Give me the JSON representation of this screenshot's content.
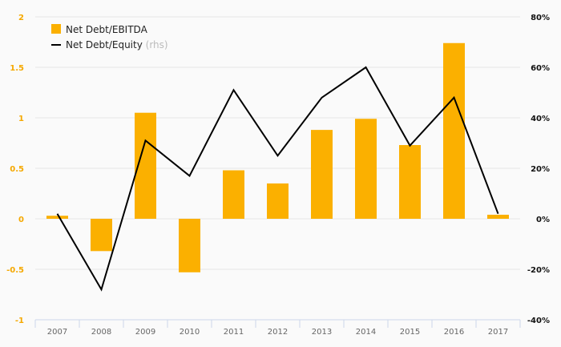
{
  "chart_data": {
    "type": "bar",
    "categories": [
      "2007",
      "2008",
      "2009",
      "2010",
      "2011",
      "2012",
      "2013",
      "2014",
      "2015",
      "2016",
      "2017"
    ],
    "series": [
      {
        "name": "Net Debt/EBITDA",
        "type": "bar",
        "axis": "left",
        "color": "#fbb000",
        "values": [
          0.03,
          -0.32,
          1.05,
          -0.53,
          0.48,
          0.35,
          0.88,
          0.99,
          0.73,
          1.74,
          0.04
        ]
      },
      {
        "name": "Net Debt/Equity",
        "suffix": "(rhs)",
        "type": "line",
        "axis": "right",
        "color": "#000000",
        "values": [
          2,
          -28,
          31,
          17,
          51,
          25,
          48,
          60,
          29,
          48,
          2
        ]
      }
    ],
    "left_axis": {
      "ylim": [
        -1,
        2
      ],
      "ticks": [
        2,
        1.5,
        1,
        0.5,
        0,
        -0.5,
        -1
      ],
      "labels": [
        "2",
        "1.5",
        "1",
        "0.5",
        "0",
        "-0.5",
        "-1"
      ]
    },
    "right_axis": {
      "ylim": [
        -40,
        80
      ],
      "ticks": [
        80,
        60,
        40,
        20,
        0,
        -20,
        -40
      ],
      "labels": [
        "80%",
        "60%",
        "40%",
        "20%",
        "0%",
        "-20%",
        "-40%"
      ]
    },
    "legend": {
      "placement": "top-left",
      "entries": [
        "Net Debt/EBITDA",
        "Net Debt/Equity"
      ],
      "rhs_note": "(rhs)"
    },
    "grid": true
  }
}
